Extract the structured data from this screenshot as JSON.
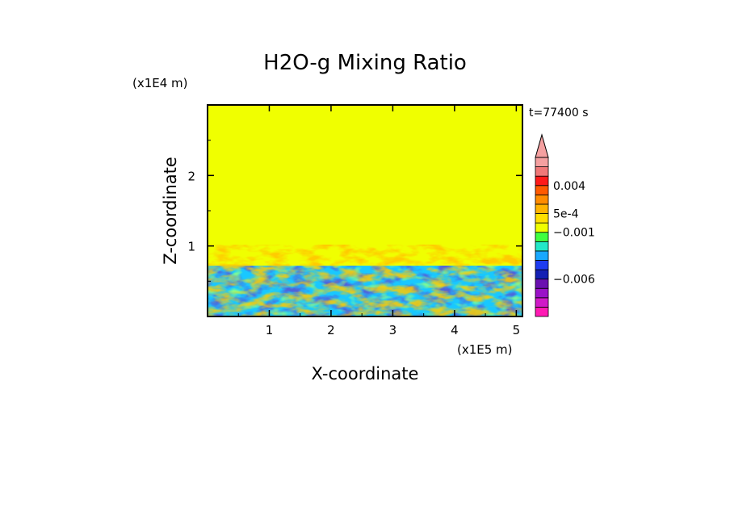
{
  "chart_data": {
    "type": "heatmap",
    "title": "H2O-g Mixing Ratio",
    "xlabel": "X-coordinate",
    "ylabel": "Z-coordinate",
    "x_scale_label": "(x1E5 m)",
    "y_scale_label": "(x1E4 m)",
    "time_label": "t=77400 s",
    "xlim": [
      0,
      5.1
    ],
    "ylim": [
      0,
      3.0
    ],
    "x_ticks": [
      1,
      2,
      3,
      4,
      5
    ],
    "y_ticks": [
      1,
      2
    ],
    "x_tick_labels": [
      "1",
      "2",
      "3",
      "4",
      "5"
    ],
    "y_tick_labels": [
      "1",
      "2"
    ],
    "background_value_color": "#f0ff00",
    "mixed_layer_top": 0.72,
    "plume_top": 1.02,
    "colorbar": {
      "colors": [
        "#ff1ab4",
        "#d01ac8",
        "#9a12c8",
        "#6a10b0",
        "#1420b4",
        "#1e3cf0",
        "#18a8ff",
        "#22e8c8",
        "#40ff40",
        "#f0ff00",
        "#ffe000",
        "#ffb400",
        "#ff8c00",
        "#ff5a00",
        "#ff1a1a",
        "#f07878",
        "#f4a0a0"
      ],
      "extend_top": true,
      "tick_labels": [
        "0.004",
        "5e-4",
        "−0.001",
        "−0.006"
      ]
    }
  }
}
